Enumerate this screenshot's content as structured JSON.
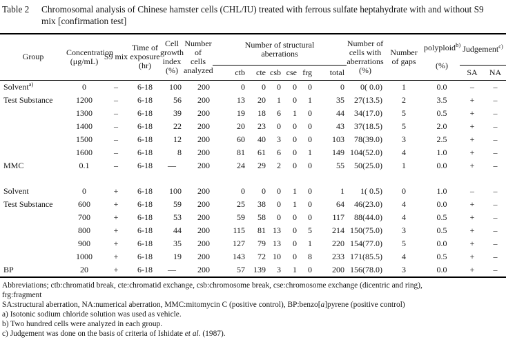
{
  "title": {
    "label": "Table 2",
    "caption": "Chromosomal analysis of Chinese hamster cells (CHL/IU) treated with ferrous sulfate heptahydrate with and without S9 mix [confirmation test]"
  },
  "table": {
    "header": {
      "group": "Group",
      "concentration": "Concentration\n(μg/mL)",
      "s9": "S9 mix",
      "time": "Time of\nexposure\n(hr)",
      "growth": "Cell\ngrowth\nindex\n(%)",
      "analyzed": "Number of\ncells\nanalyzed",
      "structural": "Number of structural\naberrations",
      "sub": {
        "ctb": "ctb",
        "cte": "cte",
        "csb": "csb",
        "cse": "cse",
        "frg": "frg",
        "total": "total"
      },
      "aberr_cells": "Number of\ncells with\naberrations\n(%)",
      "gaps": "Number\nof gaps",
      "polyploid_text": "polyploid",
      "polyploid_sup": "b)",
      "polyploid_unit": "(%)",
      "judgement_text": "Judgement",
      "judgement_sup": "c)",
      "sa": "SA",
      "na": "NA"
    },
    "rows": [
      {
        "group": "Solvent",
        "sup": "a)",
        "cells": [
          "0",
          "–",
          "6-18",
          "100",
          "200",
          "0",
          "0",
          "0",
          "0",
          "0",
          "0",
          "0( 0.0)",
          "1",
          "0.0",
          "–",
          "–"
        ]
      },
      {
        "group": "Test Substance",
        "cells": [
          "1200",
          "–",
          "6-18",
          "56",
          "200",
          "13",
          "20",
          "1",
          "0",
          "1",
          "35",
          "27(13.5)",
          "2",
          "3.5",
          "+",
          "–"
        ]
      },
      {
        "cells": [
          "1300",
          "–",
          "6-18",
          "39",
          "200",
          "19",
          "18",
          "6",
          "1",
          "0",
          "44",
          "34(17.0)",
          "5",
          "0.5",
          "+",
          "–"
        ]
      },
      {
        "cells": [
          "1400",
          "–",
          "6-18",
          "22",
          "200",
          "20",
          "23",
          "0",
          "0",
          "0",
          "43",
          "37(18.5)",
          "5",
          "2.0",
          "+",
          "–"
        ]
      },
      {
        "cells": [
          "1500",
          "–",
          "6-18",
          "12",
          "200",
          "60",
          "40",
          "3",
          "0",
          "0",
          "103",
          "78(39.0)",
          "3",
          "2.5",
          "+",
          "–"
        ]
      },
      {
        "cells": [
          "1600",
          "–",
          "6-18",
          "8",
          "200",
          "81",
          "61",
          "6",
          "0",
          "1",
          "149",
          "104(52.0)",
          "4",
          "1.0",
          "+",
          "–"
        ]
      },
      {
        "group": "MMC",
        "cells": [
          "0.1",
          "–",
          "6-18",
          "—",
          "200",
          "24",
          "29",
          "2",
          "0",
          "0",
          "55",
          "50(25.0)",
          "1",
          "0.0",
          "+",
          "–"
        ]
      },
      {
        "spacer": true
      },
      {
        "group": "Solvent",
        "cells": [
          "0",
          "+",
          "6-18",
          "100",
          "200",
          "0",
          "0",
          "0",
          "1",
          "0",
          "1",
          "1( 0.5)",
          "0",
          "1.0",
          "–",
          "–"
        ]
      },
      {
        "group": "Test Substance",
        "cells": [
          "600",
          "+",
          "6-18",
          "59",
          "200",
          "25",
          "38",
          "0",
          "1",
          "0",
          "64",
          "46(23.0)",
          "4",
          "0.0",
          "+",
          "–"
        ]
      },
      {
        "cells": [
          "700",
          "+",
          "6-18",
          "53",
          "200",
          "59",
          "58",
          "0",
          "0",
          "0",
          "117",
          "88(44.0)",
          "4",
          "0.5",
          "+",
          "–"
        ]
      },
      {
        "cells": [
          "800",
          "+",
          "6-18",
          "44",
          "200",
          "115",
          "81",
          "13",
          "0",
          "5",
          "214",
          "150(75.0)",
          "3",
          "0.5",
          "+",
          "–"
        ]
      },
      {
        "cells": [
          "900",
          "+",
          "6-18",
          "35",
          "200",
          "127",
          "79",
          "13",
          "0",
          "1",
          "220",
          "154(77.0)",
          "5",
          "0.0",
          "+",
          "–"
        ]
      },
      {
        "cells": [
          "1000",
          "+",
          "6-18",
          "19",
          "200",
          "143",
          "72",
          "10",
          "0",
          "8",
          "233",
          "171(85.5)",
          "4",
          "0.5",
          "+",
          "–"
        ]
      },
      {
        "group": "BP",
        "cells": [
          "20",
          "+",
          "6-18",
          "—",
          "200",
          "57",
          "139",
          "3",
          "1",
          "0",
          "200",
          "156(78.0)",
          "3",
          "0.0",
          "+",
          "–"
        ]
      }
    ]
  },
  "footnotes": {
    "abbrev_line1": "Abbreviations; ctb:chromatid break, cte:chromatid exchange, csb:chromosome break, cse:chromosome exchange (dicentric and ring),",
    "abbrev_line2": "frg:fragment",
    "abbrev2_pre": "SA:structural aberration, NA:numerical aberration, MMC:mitomycin C (positive control), BP:benzo[",
    "abbrev2_italic": "a",
    "abbrev2_post": "]pyrene (positive control)",
    "note_a": "a) Isotonic sodium chloride solution was used as vehicle.",
    "note_b": "b) Two hundred cells were analyzed in each group.",
    "note_c_pre": "c) Judgement was done on the basis of criteria of Ishidate ",
    "note_c_italic": "et al.",
    "note_c_post": " (1987)."
  }
}
